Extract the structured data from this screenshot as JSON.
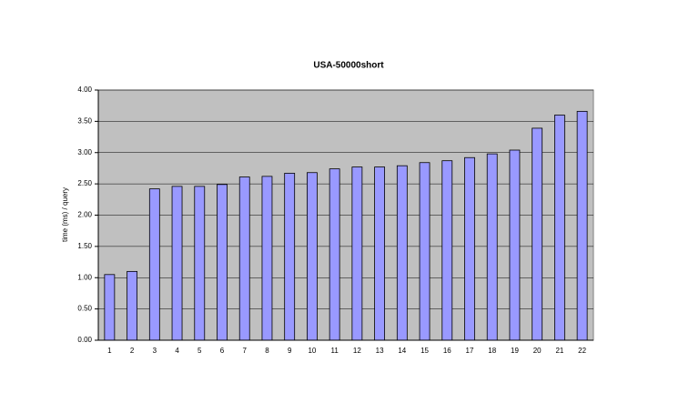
{
  "chart_data": {
    "type": "bar",
    "title": "USA-50000short",
    "y_label": "time (ms) / query",
    "categories": [
      "1",
      "2",
      "3",
      "4",
      "5",
      "6",
      "7",
      "8",
      "9",
      "10",
      "11",
      "12",
      "13",
      "14",
      "15",
      "16",
      "17",
      "18",
      "19",
      "20",
      "21",
      "22"
    ],
    "values": [
      1.05,
      1.1,
      2.42,
      2.46,
      2.46,
      2.49,
      2.61,
      2.62,
      2.67,
      2.68,
      2.74,
      2.77,
      2.77,
      2.79,
      2.84,
      2.87,
      2.92,
      2.98,
      3.04,
      3.39,
      3.6,
      3.66
    ],
    "color": "#9999ff",
    "ylim": [
      0,
      4
    ],
    "yticks": [
      {
        "value": 0,
        "label": "0.00"
      },
      {
        "value": 0.5,
        "label": "0.50"
      },
      {
        "value": 1,
        "label": "1.00"
      },
      {
        "value": 1.5,
        "label": "1.50"
      },
      {
        "value": 2,
        "label": "2.00"
      },
      {
        "value": 2.5,
        "label": "2.50"
      },
      {
        "value": 3,
        "label": "3.00"
      },
      {
        "value": 3.5,
        "label": "3.50"
      },
      {
        "value": 4,
        "label": "4.00"
      }
    ],
    "grid": true
  }
}
